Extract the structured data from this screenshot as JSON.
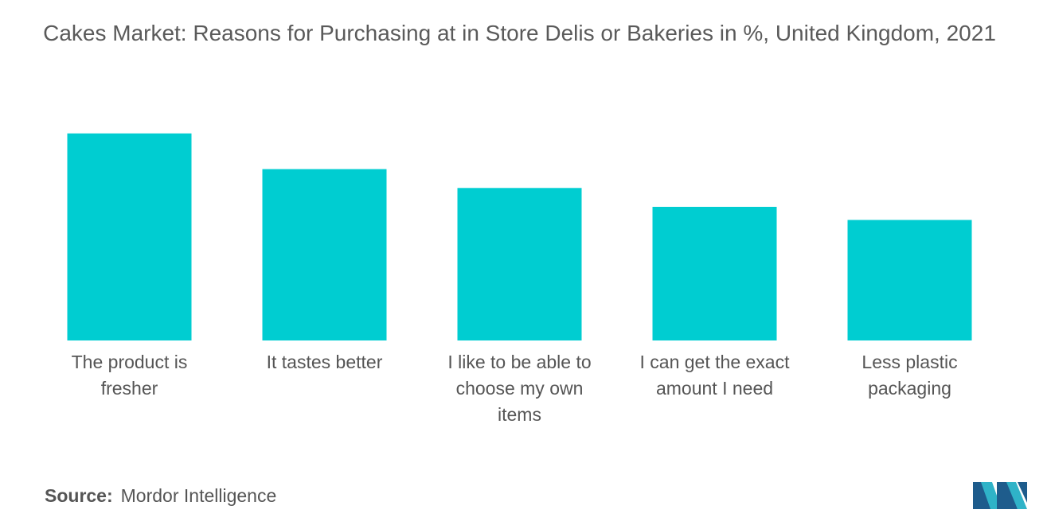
{
  "chart_data": {
    "type": "bar",
    "title": "Cakes Market: Reasons for Purchasing at in Store Delis or Bakeries in %, United Kingdom, 2021",
    "categories": [
      [
        "The product is",
        "fresher"
      ],
      [
        "It tastes better"
      ],
      [
        "I like to be able to",
        "choose my own",
        "items"
      ],
      [
        "I can get the exact",
        "amount I need"
      ],
      [
        "Less plastic",
        "packaging"
      ]
    ],
    "values": [
      55,
      45.5,
      40.5,
      35.5,
      32
    ],
    "ylim": [
      0,
      60
    ],
    "grid": false,
    "legend": "none",
    "bar_color": "#00cdd1"
  },
  "source": {
    "label": "Source:",
    "value": "Mordor Intelligence"
  },
  "logo": {
    "name": "mordor-intelligence-logo",
    "colors": [
      "#1e5c8c",
      "#2fb3c8"
    ]
  }
}
